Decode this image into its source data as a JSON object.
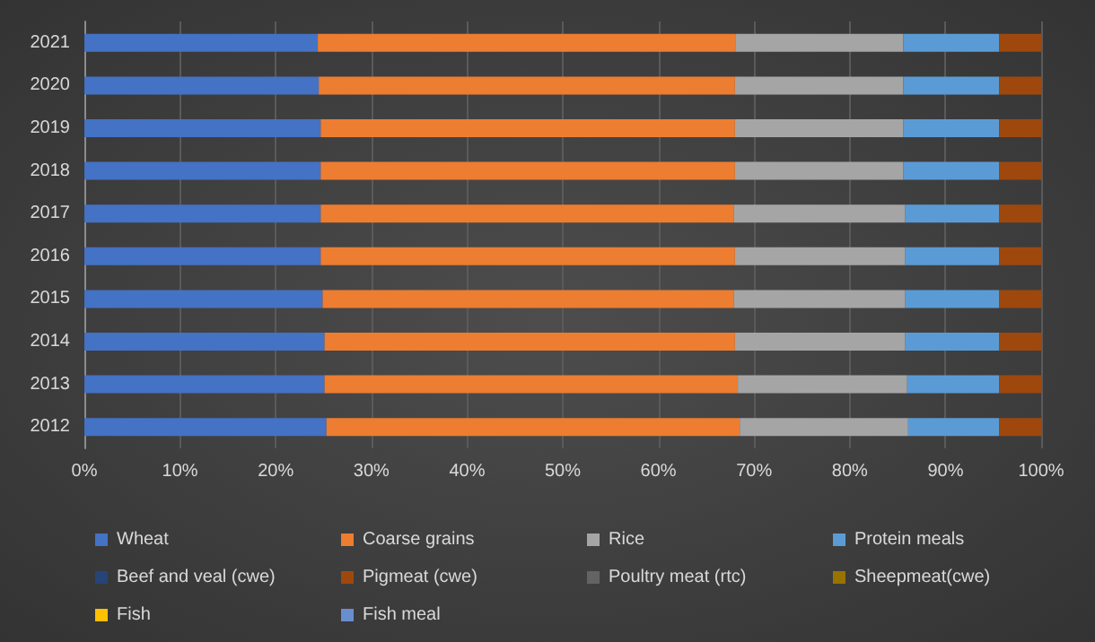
{
  "chart_data": {
    "type": "bar",
    "orientation": "horizontal",
    "stacked": true,
    "grid": "x",
    "legend": "bottom",
    "categories": [
      "2021",
      "2020",
      "2019",
      "2018",
      "2017",
      "2016",
      "2015",
      "2014",
      "2013",
      "2012"
    ],
    "xlim": [
      0,
      100
    ],
    "xticks": [
      {
        "value": 0,
        "label": "0%"
      },
      {
        "value": 10,
        "label": "10%"
      },
      {
        "value": 20,
        "label": "20%"
      },
      {
        "value": 30,
        "label": "30%"
      },
      {
        "value": 40,
        "label": "40%"
      },
      {
        "value": 50,
        "label": "50%"
      },
      {
        "value": 60,
        "label": "60%"
      },
      {
        "value": 70,
        "label": "70%"
      },
      {
        "value": 80,
        "label": "80%"
      },
      {
        "value": 90,
        "label": "90%"
      },
      {
        "value": 100,
        "label": "100%"
      }
    ],
    "series": [
      {
        "name": "Wheat",
        "color": "#4472c4",
        "values": [
          24.4,
          24.5,
          24.7,
          24.7,
          24.7,
          24.7,
          24.9,
          25.1,
          25.1,
          25.3
        ]
      },
      {
        "name": "Coarse grains",
        "color": "#ed7d31",
        "values": [
          43.7,
          43.5,
          43.3,
          43.3,
          43.2,
          43.3,
          43.0,
          42.9,
          43.2,
          43.2
        ]
      },
      {
        "name": "Rice",
        "color": "#a5a5a5",
        "values": [
          17.5,
          17.6,
          17.6,
          17.6,
          17.9,
          17.8,
          17.9,
          17.8,
          17.7,
          17.6
        ]
      },
      {
        "name": "Protein meals",
        "color": "#5b9bd5",
        "values": [
          10.0,
          10.0,
          10.0,
          10.0,
          9.8,
          9.8,
          9.8,
          9.8,
          9.6,
          9.5
        ]
      },
      {
        "name": "Beef and veal (cwe)",
        "color": "#264478",
        "values": [
          0,
          0,
          0,
          0,
          0,
          0,
          0,
          0,
          0,
          0
        ]
      },
      {
        "name": "Pigmeat (cwe)",
        "color": "#9e480e",
        "values": [
          4.4,
          4.4,
          4.4,
          4.4,
          4.4,
          4.4,
          4.4,
          4.4,
          4.4,
          4.4
        ]
      },
      {
        "name": "Poultry meat (rtc)",
        "color": "#636363",
        "values": [
          0,
          0,
          0,
          0,
          0,
          0,
          0,
          0,
          0,
          0
        ]
      },
      {
        "name": "Sheepmeat(cwe)",
        "color": "#997300",
        "values": [
          0,
          0,
          0,
          0,
          0,
          0,
          0,
          0,
          0,
          0
        ]
      },
      {
        "name": "Fish",
        "color": "#ffc000",
        "values": [
          0,
          0,
          0,
          0,
          0,
          0,
          0,
          0,
          0,
          0
        ]
      },
      {
        "name": "Fish meal",
        "color": "#698ed0",
        "values": [
          0,
          0,
          0,
          0,
          0,
          0,
          0,
          0,
          0,
          0
        ]
      }
    ]
  }
}
